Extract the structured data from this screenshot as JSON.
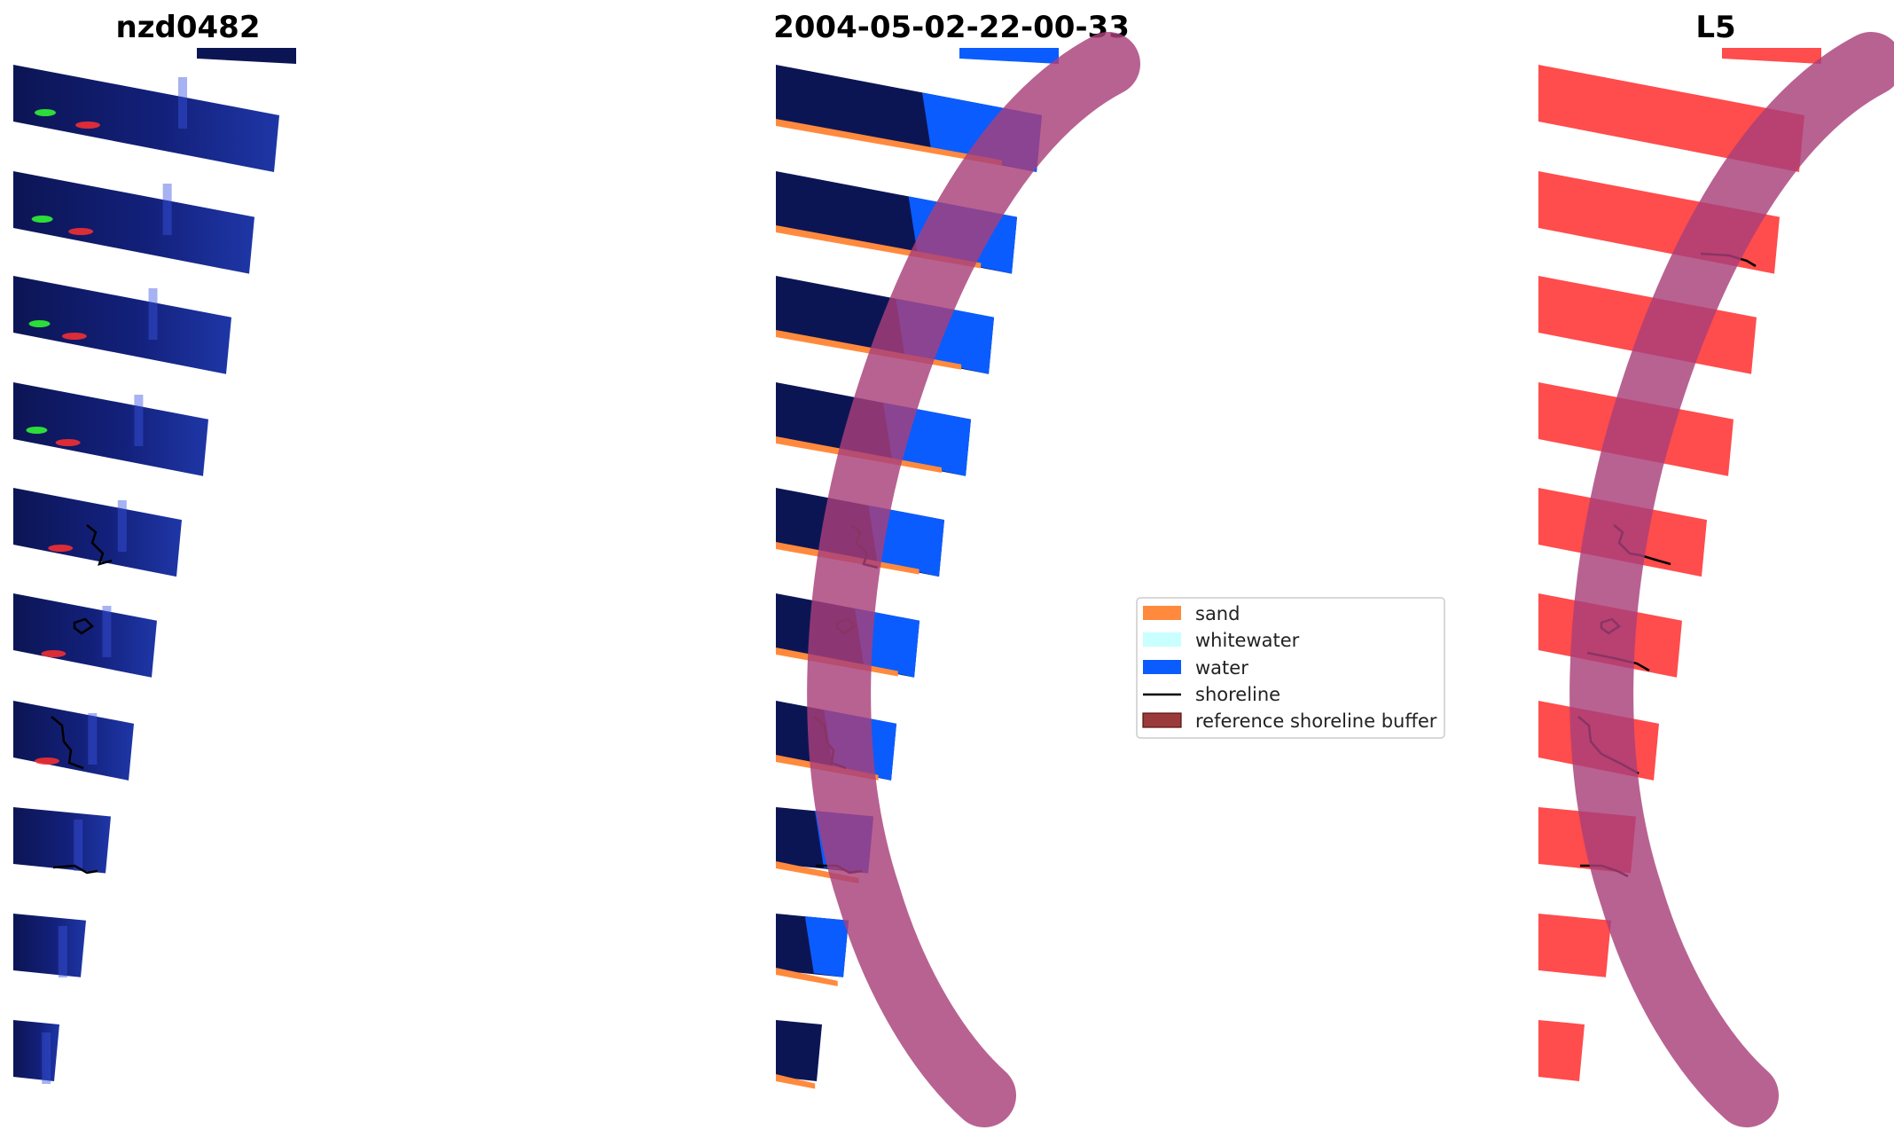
{
  "panels": [
    {
      "title": "nzd0482"
    },
    {
      "title": "2004-05-02-22-00-33"
    },
    {
      "title": "L5"
    }
  ],
  "legend": {
    "items": [
      {
        "label": "sand",
        "color": "#ff8a3d",
        "kind": "patch"
      },
      {
        "label": "whitewater",
        "color": "#c9ffff",
        "kind": "patch"
      },
      {
        "label": "water",
        "color": "#0a5cff",
        "kind": "patch"
      },
      {
        "label": "shoreline",
        "color": "#000000",
        "kind": "line"
      },
      {
        "label": "reference shoreline buffer",
        "color": "#9a3a3a",
        "kind": "patch"
      }
    ]
  },
  "colors": {
    "image_dark": "#0c1554",
    "image_mid": "#1a2a8c",
    "image_glow": "#3a55e0",
    "mask_red": "#ff4c4c",
    "buffer_purple": "#a8407a",
    "water_blue": "#0a5cff",
    "sand_orange": "#ff8a3d",
    "green_pixels": "#33ff33",
    "red_pixels": "#ff3030"
  }
}
